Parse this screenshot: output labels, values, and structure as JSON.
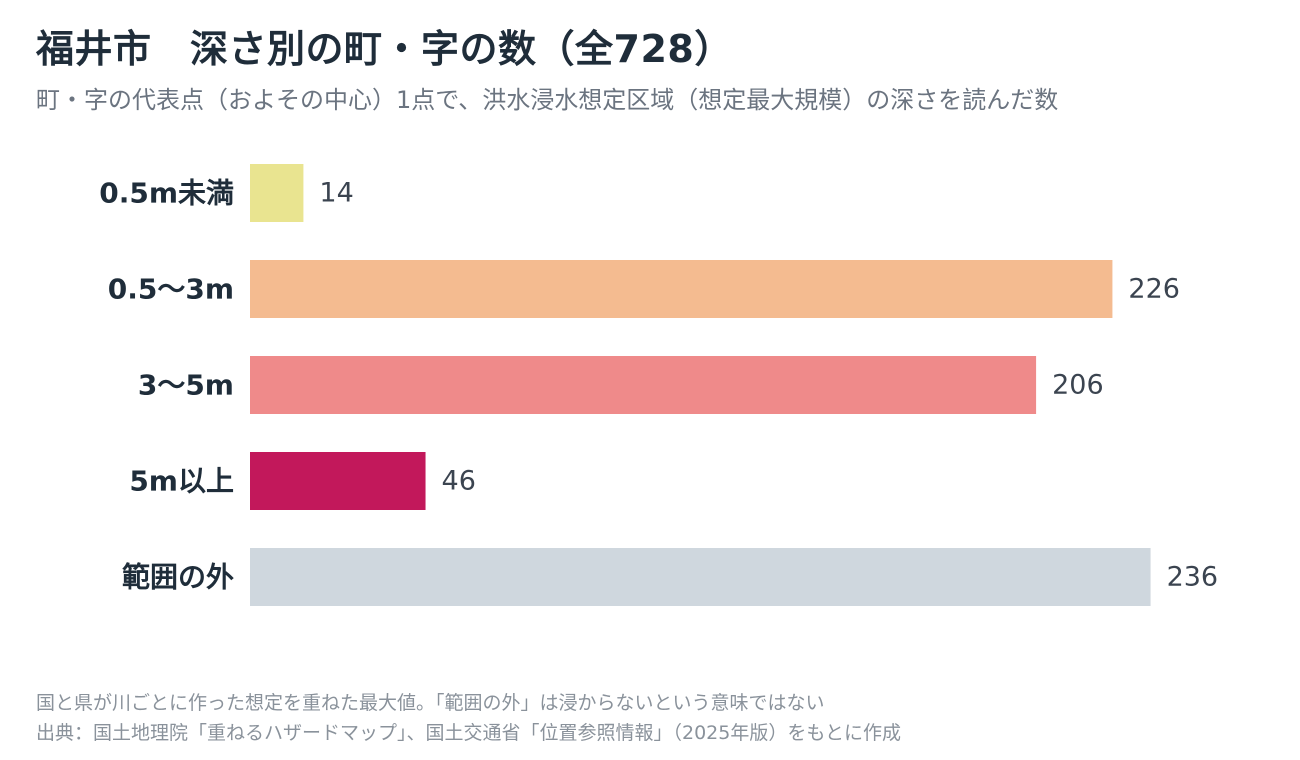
{
  "title": "福井市　深さ別の町・字の数（全728）",
  "subtitle": "町・字の代表点（およその中心）1点で、洪水浸水想定区域（想定最大規模）の深さを読んだ数",
  "notes": {
    "line1": "国と県が川ごとに作った想定を重ねた最大値。「範囲の外」は浸からないという意味ではない",
    "line2": "出典：国土地理院「重ねるハザードマップ」、国土交通省「位置参照情報」（2025年版）をもとに作成"
  },
  "chart_data": {
    "type": "bar",
    "orientation": "horizontal",
    "title": "福井市　深さ別の町・字の数（全728）",
    "subtitle": "町・字の代表点（およその中心）1点で、洪水浸水想定区域（想定最大規模）の深さを読んだ数",
    "categories": [
      "0.5m未満",
      "0.5〜3m",
      "3〜5m",
      "5m以上",
      "範囲の外"
    ],
    "values": [
      14,
      226,
      206,
      46,
      236
    ],
    "colors": [
      "#e9e490",
      "#f4bb90",
      "#ef8a8a",
      "#c2185b",
      "#cfd7de"
    ],
    "data_labels": [
      "14",
      "226",
      "206",
      "46",
      "236"
    ],
    "xlabel": "",
    "ylabel": "",
    "grid": false,
    "legend": "none"
  }
}
